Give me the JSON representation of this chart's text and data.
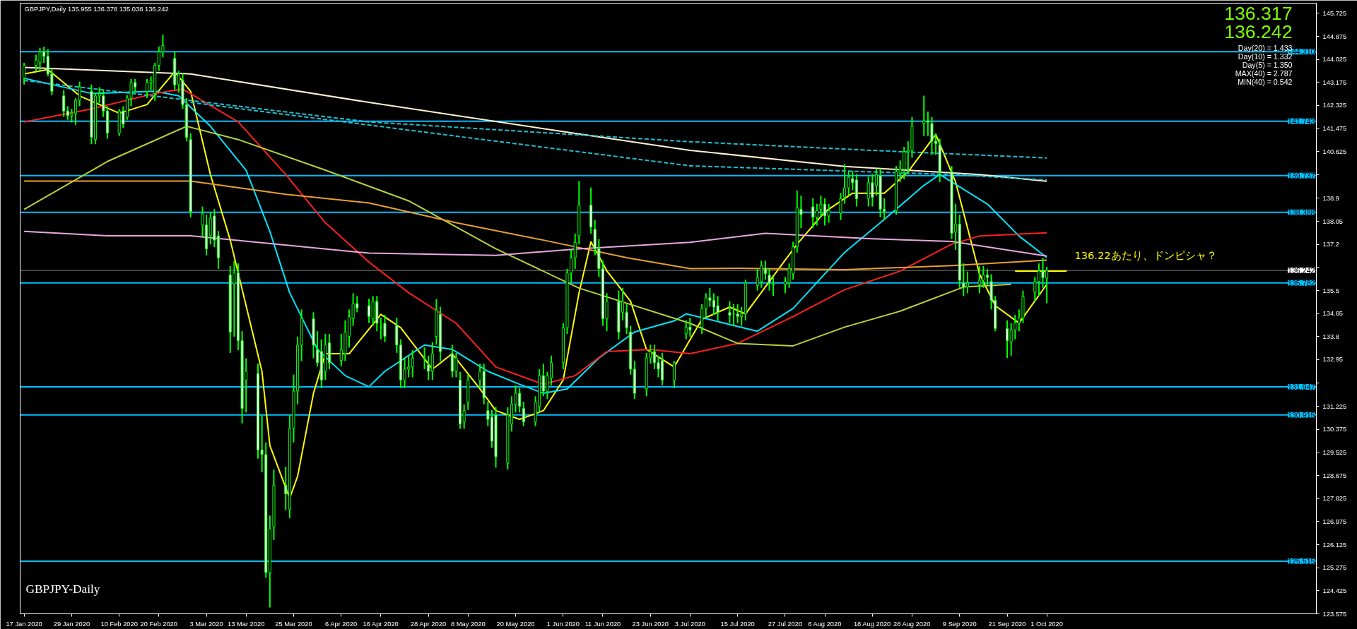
{
  "chart_data": {
    "type": "candlestick",
    "title": "GBPJPY,Daily  135.955 136.378 135.038 136.242",
    "x": [
      "2020-01-17",
      "2020-01-20",
      "2020-01-21",
      "2020-01-22",
      "2020-01-23",
      "2020-01-24",
      "2020-01-27",
      "2020-01-28",
      "2020-01-29",
      "2020-01-30",
      "2020-01-31",
      "2020-02-03",
      "2020-02-04",
      "2020-02-05",
      "2020-02-06",
      "2020-02-07",
      "2020-02-10",
      "2020-02-11",
      "2020-02-12",
      "2020-02-13",
      "2020-02-14",
      "2020-02-17",
      "2020-02-18",
      "2020-02-19",
      "2020-02-20",
      "2020-02-21",
      "2020-02-24",
      "2020-02-25",
      "2020-02-26",
      "2020-02-27",
      "2020-02-28",
      "2020-03-02",
      "2020-03-03",
      "2020-03-04",
      "2020-03-05",
      "2020-03-06",
      "2020-03-09",
      "2020-03-10",
      "2020-03-11",
      "2020-03-12",
      "2020-03-13",
      "2020-03-16",
      "2020-03-17",
      "2020-03-18",
      "2020-03-19",
      "2020-03-20",
      "2020-03-23",
      "2020-03-24",
      "2020-03-25",
      "2020-03-26",
      "2020-03-27",
      "2020-03-30",
      "2020-03-31",
      "2020-04-01",
      "2020-04-02",
      "2020-04-03",
      "2020-04-06",
      "2020-04-07",
      "2020-04-08",
      "2020-04-09",
      "2020-04-10",
      "2020-04-13",
      "2020-04-14",
      "2020-04-15",
      "2020-04-16",
      "2020-04-17",
      "2020-04-20",
      "2020-04-21",
      "2020-04-22",
      "2020-04-23",
      "2020-04-24",
      "2020-04-27",
      "2020-04-28",
      "2020-04-29",
      "2020-04-30",
      "2020-05-01",
      "2020-05-04",
      "2020-05-05",
      "2020-05-06",
      "2020-05-07",
      "2020-05-08",
      "2020-05-11",
      "2020-05-12",
      "2020-05-13",
      "2020-05-14",
      "2020-05-15",
      "2020-05-18",
      "2020-05-19",
      "2020-05-20",
      "2020-05-21",
      "2020-05-22",
      "2020-05-25",
      "2020-05-26",
      "2020-05-27",
      "2020-05-28",
      "2020-05-29",
      "2020-06-01",
      "2020-06-02",
      "2020-06-03",
      "2020-06-04",
      "2020-06-05",
      "2020-06-08",
      "2020-06-09",
      "2020-06-10",
      "2020-06-11",
      "2020-06-12",
      "2020-06-15",
      "2020-06-16",
      "2020-06-17",
      "2020-06-18",
      "2020-06-19",
      "2020-06-22",
      "2020-06-23",
      "2020-06-24",
      "2020-06-25",
      "2020-06-26",
      "2020-06-29",
      "2020-07-02",
      "2020-07-03",
      "2020-07-06",
      "2020-07-07",
      "2020-07-08",
      "2020-07-09",
      "2020-07-10",
      "2020-07-13",
      "2020-07-14",
      "2020-07-15",
      "2020-07-16",
      "2020-07-17",
      "2020-07-20",
      "2020-07-21",
      "2020-07-22",
      "2020-07-23",
      "2020-07-24",
      "2020-07-27",
      "2020-07-28",
      "2020-07-29",
      "2020-07-30",
      "2020-07-31",
      "2020-08-03",
      "2020-08-04",
      "2020-08-05",
      "2020-08-06",
      "2020-08-07",
      "2020-08-10",
      "2020-08-11",
      "2020-08-12",
      "2020-08-13",
      "2020-08-14",
      "2020-08-17",
      "2020-08-18",
      "2020-08-19",
      "2020-08-20",
      "2020-08-21",
      "2020-08-24",
      "2020-08-25",
      "2020-08-26",
      "2020-08-27",
      "2020-08-28",
      "2020-08-31",
      "2020-09-01",
      "2020-09-02",
      "2020-09-03",
      "2020-09-04",
      "2020-09-07",
      "2020-09-08",
      "2020-09-09",
      "2020-09-10",
      "2020-09-11",
      "2020-09-14",
      "2020-09-15",
      "2020-09-16",
      "2020-09-17",
      "2020-09-18",
      "2020-09-21",
      "2020-09-22",
      "2020-09-23",
      "2020-09-24",
      "2020-09-25",
      "2020-09-28",
      "2020-09-29",
      "2020-09-30",
      "2020-10-01"
    ],
    "ohlc": [
      [
        143.33,
        143.9,
        143.1,
        143.81
      ],
      [
        143.81,
        144.2,
        143.6,
        144.0
      ],
      [
        143.9,
        144.45,
        143.6,
        144.3
      ],
      [
        144.3,
        144.5,
        143.9,
        144.14
      ],
      [
        144.14,
        144.4,
        143.4,
        143.49
      ],
      [
        143.49,
        143.7,
        142.7,
        142.85
      ],
      [
        142.68,
        142.9,
        141.9,
        142.12
      ],
      [
        142.12,
        142.3,
        141.8,
        141.95
      ],
      [
        141.95,
        142.2,
        141.7,
        142.04
      ],
      [
        142.04,
        142.6,
        141.6,
        142.52
      ],
      [
        142.52,
        143.2,
        142.3,
        143.01
      ],
      [
        142.85,
        143.1,
        140.9,
        141.15
      ],
      [
        141.07,
        142.8,
        140.9,
        142.68
      ],
      [
        142.68,
        143.0,
        142.4,
        142.75
      ],
      [
        142.68,
        142.9,
        141.9,
        142.12
      ],
      [
        142.12,
        142.3,
        141.1,
        141.31
      ],
      [
        141.31,
        142.2,
        141.2,
        142.12
      ],
      [
        142.12,
        142.3,
        141.5,
        141.64
      ],
      [
        141.9,
        142.7,
        141.8,
        142.6
      ],
      [
        142.6,
        143.3,
        142.3,
        143.17
      ],
      [
        143.17,
        143.3,
        142.8,
        143.01
      ],
      [
        142.85,
        143.3,
        142.6,
        143.17
      ],
      [
        143.17,
        143.4,
        142.9,
        143.25
      ],
      [
        142.77,
        143.9,
        142.5,
        143.81
      ],
      [
        143.81,
        144.5,
        143.6,
        144.3
      ],
      [
        144.3,
        144.94,
        144.1,
        144.54
      ],
      [
        144.06,
        144.3,
        142.9,
        143.09
      ],
      [
        143.09,
        143.6,
        142.8,
        143.49
      ],
      [
        143.25,
        143.5,
        142.2,
        142.36
      ],
      [
        142.36,
        142.6,
        141.0,
        141.15
      ],
      [
        141.07,
        141.3,
        138.2,
        138.41
      ],
      [
        137.92,
        138.6,
        137.5,
        138.33
      ],
      [
        137.92,
        138.3,
        136.8,
        137.04
      ],
      [
        137.52,
        138.4,
        137.2,
        138.17
      ],
      [
        138.25,
        138.5,
        137.1,
        137.36
      ],
      [
        137.52,
        137.7,
        136.3,
        136.71
      ],
      [
        136.07,
        136.4,
        133.2,
        133.97
      ],
      [
        135.75,
        136.6,
        133.8,
        136.15
      ],
      [
        136.15,
        136.5,
        133.3,
        133.65
      ],
      [
        133.65,
        134.0,
        130.6,
        131.15
      ],
      [
        132.2,
        133.0,
        131.0,
        132.52
      ],
      [
        132.44,
        132.8,
        129.3,
        129.62
      ],
      [
        129.62,
        130.9,
        128.8,
        129.45
      ],
      [
        129.45,
        129.9,
        124.9,
        125.1
      ],
      [
        125.1,
        127.2,
        123.81,
        126.71
      ],
      [
        126.79,
        128.9,
        126.3,
        128.32
      ],
      [
        128.32,
        129.0,
        127.4,
        128.0
      ],
      [
        127.44,
        130.9,
        127.1,
        130.42
      ],
      [
        130.42,
        132.4,
        129.9,
        131.79
      ],
      [
        131.79,
        133.8,
        131.3,
        133.49
      ],
      [
        133.49,
        134.8,
        132.9,
        134.46
      ],
      [
        134.46,
        134.7,
        133.0,
        133.49
      ],
      [
        133.33,
        134.0,
        132.7,
        132.84
      ],
      [
        133.25,
        133.7,
        131.9,
        132.2
      ],
      [
        132.52,
        133.9,
        132.2,
        133.49
      ],
      [
        133.57,
        133.9,
        132.6,
        132.84
      ],
      [
        132.92,
        133.9,
        132.7,
        133.33
      ],
      [
        133.17,
        134.4,
        132.9,
        133.97
      ],
      [
        133.81,
        134.8,
        133.4,
        134.54
      ],
      [
        134.46,
        135.4,
        134.2,
        135.02
      ],
      [
        135.02,
        135.3,
        134.7,
        134.86
      ],
      [
        134.94,
        135.2,
        134.3,
        134.54
      ],
      [
        134.46,
        135.3,
        134.2,
        135.1
      ],
      [
        135.1,
        135.3,
        134.0,
        134.29
      ],
      [
        134.13,
        134.5,
        133.7,
        134.13
      ],
      [
        134.29,
        134.6,
        133.6,
        133.81
      ],
      [
        134.21,
        134.5,
        133.2,
        133.49
      ],
      [
        133.49,
        133.7,
        131.9,
        132.2
      ],
      [
        132.2,
        133.0,
        131.9,
        132.6
      ],
      [
        132.6,
        133.1,
        132.3,
        132.68
      ],
      [
        132.68,
        133.3,
        132.3,
        133.01
      ],
      [
        133.01,
        133.4,
        132.6,
        133.01
      ],
      [
        132.76,
        133.1,
        132.2,
        132.52
      ],
      [
        132.52,
        133.6,
        132.2,
        133.17
      ],
      [
        133.81,
        135.18,
        133.5,
        134.78
      ],
      [
        134.62,
        134.9,
        132.9,
        133.25
      ],
      [
        133.17,
        133.5,
        132.3,
        132.52
      ],
      [
        132.52,
        133.2,
        132.3,
        133.01
      ],
      [
        132.2,
        132.5,
        130.4,
        130.58
      ],
      [
        130.66,
        131.3,
        130.4,
        131.07
      ],
      [
        131.39,
        132.4,
        131.1,
        132.2
      ],
      [
        132.2,
        132.8,
        131.9,
        132.52
      ],
      [
        132.52,
        132.8,
        131.3,
        131.55
      ],
      [
        131.07,
        131.4,
        130.5,
        130.75
      ],
      [
        130.83,
        131.1,
        129.7,
        129.94
      ],
      [
        130.91,
        131.2,
        128.97,
        129.37
      ],
      [
        129.13,
        131.2,
        128.9,
        130.91
      ],
      [
        130.58,
        131.6,
        130.3,
        131.31
      ],
      [
        131.31,
        132.0,
        131.0,
        131.71
      ],
      [
        131.71,
        131.9,
        131.0,
        131.23
      ],
      [
        131.15,
        131.4,
        130.5,
        130.66
      ],
      [
        130.66,
        131.6,
        130.5,
        131.39
      ],
      [
        131.23,
        132.6,
        131.0,
        132.36
      ],
      [
        132.36,
        132.8,
        131.6,
        131.79
      ],
      [
        131.79,
        132.5,
        131.5,
        132.36
      ],
      [
        132.28,
        133.1,
        132.0,
        132.84
      ],
      [
        132.84,
        134.3,
        132.6,
        134.13
      ],
      [
        134.13,
        136.3,
        133.9,
        136.15
      ],
      [
        136.15,
        137.0,
        135.8,
        136.71
      ],
      [
        136.71,
        137.6,
        136.3,
        137.28
      ],
      [
        137.52,
        139.54,
        137.2,
        138.65
      ],
      [
        138.65,
        139.3,
        137.6,
        137.84
      ],
      [
        137.76,
        138.1,
        136.8,
        137.04
      ],
      [
        137.04,
        137.4,
        136.0,
        136.31
      ],
      [
        136.31,
        136.6,
        134.2,
        134.46
      ],
      [
        134.46,
        135.4,
        134.0,
        135.1
      ],
      [
        135.1,
        135.5,
        133.7,
        133.97
      ],
      [
        134.7,
        135.6,
        134.4,
        135.1
      ],
      [
        134.7,
        135.0,
        133.9,
        134.13
      ],
      [
        133.97,
        134.2,
        132.4,
        132.6
      ],
      [
        132.6,
        132.9,
        131.5,
        131.71
      ],
      [
        131.87,
        133.2,
        131.6,
        133.01
      ],
      [
        133.01,
        133.5,
        132.8,
        133.25
      ],
      [
        133.25,
        133.5,
        132.6,
        132.84
      ],
      [
        132.84,
        133.1,
        132.3,
        132.6
      ],
      [
        132.92,
        133.2,
        132.0,
        132.2
      ],
      [
        132.2,
        132.9,
        131.9,
        132.84
      ],
      [
        133.9,
        134.4,
        133.7,
        134.15
      ],
      [
        134.15,
        134.5,
        133.8,
        134.05
      ],
      [
        134.15,
        135.0,
        133.9,
        134.84
      ],
      [
        134.84,
        135.4,
        134.5,
        135.23
      ],
      [
        135.23,
        135.6,
        134.9,
        135.14
      ],
      [
        135.14,
        135.4,
        134.6,
        134.89
      ],
      [
        134.94,
        135.3,
        134.4,
        134.69
      ],
      [
        134.69,
        135.1,
        134.3,
        134.59
      ],
      [
        134.64,
        135.0,
        134.2,
        134.64
      ],
      [
        134.64,
        135.0,
        134.3,
        134.54
      ],
      [
        134.54,
        134.9,
        134.2,
        134.64
      ],
      [
        134.64,
        135.9,
        134.4,
        135.78
      ],
      [
        135.68,
        136.3,
        135.5,
        135.98
      ],
      [
        135.83,
        136.6,
        135.6,
        136.42
      ],
      [
        136.32,
        136.6,
        135.9,
        136.12
      ],
      [
        136.07,
        136.3,
        135.5,
        135.78
      ],
      [
        135.73,
        136.0,
        135.3,
        135.73
      ],
      [
        135.73,
        136.0,
        135.4,
        135.83
      ],
      [
        135.78,
        136.5,
        135.6,
        136.32
      ],
      [
        136.12,
        137.3,
        135.9,
        137.11
      ],
      [
        137.11,
        139.19,
        136.9,
        138.55
      ],
      [
        138.5,
        139.0,
        137.8,
        138.3
      ],
      [
        138.59,
        138.9,
        137.8,
        138.2
      ],
      [
        138.2,
        138.7,
        137.9,
        138.45
      ],
      [
        138.5,
        139.0,
        138.2,
        138.69
      ],
      [
        138.69,
        138.9,
        137.9,
        138.25
      ],
      [
        138.25,
        138.7,
        138.0,
        138.45
      ],
      [
        138.35,
        139.1,
        138.1,
        138.89
      ],
      [
        138.94,
        140.17,
        138.7,
        139.29
      ],
      [
        139.29,
        139.9,
        139.0,
        139.68
      ],
      [
        139.63,
        139.9,
        139.2,
        139.48
      ],
      [
        139.58,
        139.8,
        138.6,
        138.89
      ],
      [
        138.89,
        139.7,
        138.6,
        139.48
      ],
      [
        139.48,
        139.8,
        138.6,
        138.94
      ],
      [
        139.38,
        140.0,
        139.0,
        139.78
      ],
      [
        139.73,
        140.0,
        138.2,
        138.5
      ],
      [
        138.5,
        138.9,
        138.1,
        138.42
      ],
      [
        138.45,
        140.1,
        138.3,
        139.88
      ],
      [
        139.83,
        140.3,
        139.5,
        139.98
      ],
      [
        139.98,
        140.8,
        139.6,
        140.62
      ],
      [
        140.62,
        141.0,
        139.8,
        140.67
      ],
      [
        140.67,
        141.9,
        140.4,
        141.56
      ],
      [
        141.66,
        142.69,
        141.2,
        141.76
      ],
      [
        141.76,
        142.1,
        141.2,
        141.71
      ],
      [
        141.66,
        141.9,
        140.5,
        141.01
      ],
      [
        141.01,
        141.3,
        140.5,
        140.92
      ],
      [
        140.87,
        141.1,
        139.5,
        139.88
      ],
      [
        139.88,
        140.1,
        137.4,
        137.61
      ],
      [
        137.66,
        138.7,
        137.0,
        137.95
      ],
      [
        137.95,
        138.3,
        135.6,
        135.88
      ],
      [
        135.78,
        136.5,
        135.3,
        135.63
      ],
      [
        135.63,
        136.2,
        135.4,
        135.78
      ],
      [
        135.73,
        136.4,
        135.4,
        135.88
      ],
      [
        135.88,
        136.4,
        135.6,
        136.07
      ],
      [
        136.07,
        136.3,
        135.7,
        135.98
      ],
      [
        135.83,
        136.1,
        134.8,
        135.14
      ],
      [
        135.14,
        135.3,
        134.0,
        134.1
      ],
      [
        134.1,
        134.4,
        133.01,
        133.65
      ],
      [
        133.6,
        134.3,
        133.1,
        134.05
      ],
      [
        134.05,
        134.6,
        133.7,
        134.3
      ],
      [
        134.3,
        134.8,
        134.0,
        134.49
      ],
      [
        134.49,
        135.5,
        134.3,
        135.28
      ],
      [
        135.43,
        136.0,
        135.1,
        135.83
      ],
      [
        135.83,
        136.5,
        135.3,
        136.22
      ],
      [
        136.22,
        136.7,
        135.6,
        135.98
      ],
      [
        135.955,
        136.378,
        135.038,
        136.242
      ]
    ],
    "series": [
      {
        "type": "line",
        "color": "#ffff00",
        "x": [
          "2020-01-17",
          "2020-01-23",
          "2020-01-31",
          "2020-02-10",
          "2020-02-17",
          "2020-02-24",
          "2020-02-28",
          "2020-03-04",
          "2020-03-09",
          "2020-03-17",
          "2020-03-19",
          "2020-03-24",
          "2020-03-26",
          "2020-03-30",
          "2020-04-02",
          "2020-04-08",
          "2020-04-16",
          "2020-04-21",
          "2020-04-29",
          "2020-05-04",
          "2020-05-11",
          "2020-05-15",
          "2020-05-21",
          "2020-05-27",
          "2020-06-01",
          "2020-06-05",
          "2020-06-08",
          "2020-06-12",
          "2020-06-18",
          "2020-06-22",
          "2020-06-29",
          "2020-07-06",
          "2020-07-13",
          "2020-07-17",
          "2020-07-24",
          "2020-07-30",
          "2020-08-06",
          "2020-08-13",
          "2020-08-21",
          "2020-08-27",
          "2020-09-03",
          "2020-09-08",
          "2020-09-14",
          "2020-09-18",
          "2020-09-24",
          "2020-10-01"
        ],
        "values": [
          143.49,
          143.65,
          142.68,
          142.04,
          142.36,
          143.57,
          142.85,
          139.78,
          137.36,
          132.52,
          129.78,
          127.84,
          128.65,
          131.71,
          133.17,
          133.17,
          134.62,
          134.13,
          132.6,
          133.17,
          131.87,
          131.07,
          130.75,
          131.07,
          132.2,
          135.42,
          137.3,
          136.23,
          135.1,
          133.33,
          132.68,
          134.44,
          134.89,
          134.64,
          136.03,
          137.21,
          138.4,
          139.09,
          139.09,
          139.88,
          141.26,
          139.5,
          136.12,
          134.94,
          134.3,
          135.73
        ]
      },
      {
        "type": "line",
        "color": "#00e5ff",
        "x": [
          "2020-01-17",
          "2020-02-03",
          "2020-02-19",
          "2020-02-25",
          "2020-03-04",
          "2020-03-13",
          "2020-03-19",
          "2020-03-24",
          "2020-03-31",
          "2020-04-07",
          "2020-04-13",
          "2020-04-17",
          "2020-04-27",
          "2020-05-04",
          "2020-05-13",
          "2020-05-21",
          "2020-05-27",
          "2020-06-02",
          "2020-06-10",
          "2020-06-19",
          "2020-06-29",
          "2020-07-02",
          "2020-07-20",
          "2020-07-29",
          "2020-08-11",
          "2020-08-20",
          "2020-08-31",
          "2020-09-04",
          "2020-09-16",
          "2020-09-24",
          "2020-10-01"
        ],
        "values": [
          143.33,
          142.77,
          142.85,
          142.68,
          141.56,
          139.94,
          137.68,
          135.42,
          133.33,
          132.36,
          131.95,
          132.52,
          133.49,
          133.33,
          132.52,
          132.04,
          131.71,
          131.87,
          133.01,
          133.97,
          134.38,
          134.64,
          134.0,
          134.84,
          136.91,
          138.0,
          139.38,
          139.78,
          138.69,
          137.51,
          136.72
        ]
      },
      {
        "type": "line",
        "color": "#ff2020",
        "x": [
          "2020-01-17",
          "2020-02-03",
          "2020-02-19",
          "2020-02-26",
          "2020-03-11",
          "2020-03-23",
          "2020-04-02",
          "2020-04-13",
          "2020-04-23",
          "2020-05-05",
          "2020-05-15",
          "2020-05-27",
          "2020-06-04",
          "2020-06-12",
          "2020-06-23",
          "2020-07-03",
          "2020-07-15",
          "2020-07-29",
          "2020-08-11",
          "2020-08-25",
          "2020-09-07",
          "2020-09-14",
          "2020-10-01"
        ],
        "values": [
          141.72,
          142.2,
          142.77,
          142.93,
          141.72,
          139.78,
          138.0,
          136.55,
          135.42,
          134.29,
          132.68,
          132.04,
          132.36,
          133.25,
          133.33,
          133.17,
          133.55,
          134.54,
          135.53,
          136.22,
          137.21,
          137.51,
          137.63
        ]
      },
      {
        "type": "line",
        "color": "#b5d43a",
        "x": [
          "2020-01-17",
          "2020-02-07",
          "2020-02-27",
          "2020-03-11",
          "2020-04-02",
          "2020-04-23",
          "2020-05-15",
          "2020-06-05",
          "2020-07-03",
          "2020-07-15",
          "2020-07-29",
          "2020-08-11",
          "2020-08-25",
          "2020-09-10",
          "2020-09-22"
        ],
        "values": [
          138.49,
          140.26,
          141.56,
          141.07,
          139.94,
          138.81,
          137.04,
          135.59,
          134.29,
          133.55,
          133.46,
          134.15,
          134.74,
          135.63,
          135.73
        ]
      },
      {
        "type": "line",
        "color": "#e6a030",
        "x": [
          "2020-01-17",
          "2020-02-28",
          "2020-03-23",
          "2020-04-13",
          "2020-05-05",
          "2020-05-27",
          "2020-06-17",
          "2020-07-03",
          "2020-07-15",
          "2020-08-11",
          "2020-09-07",
          "2020-10-01"
        ],
        "values": [
          139.54,
          139.54,
          139.05,
          138.73,
          138.0,
          137.36,
          136.71,
          136.31,
          136.32,
          136.27,
          136.42,
          136.62
        ]
      },
      {
        "type": "line",
        "color": "#e8a8e0",
        "x": [
          "2020-01-17",
          "2020-02-07",
          "2020-02-28",
          "2020-04-13",
          "2020-05-15",
          "2020-06-05",
          "2020-07-03",
          "2020-07-22",
          "2020-08-18",
          "2020-09-07",
          "2020-10-01"
        ],
        "values": [
          137.68,
          137.52,
          137.52,
          136.88,
          136.8,
          137.04,
          137.28,
          137.61,
          137.41,
          137.31,
          136.77
        ]
      },
      {
        "type": "line",
        "color": "#fff0d0",
        "x": [
          "2020-01-17",
          "2020-02-28",
          "2020-04-13",
          "2020-05-27",
          "2020-07-03",
          "2020-08-11",
          "2020-09-14",
          "2020-10-01"
        ],
        "values": [
          143.73,
          143.49,
          142.44,
          141.47,
          140.67,
          140.08,
          139.78,
          139.53
        ]
      },
      {
        "type": "line",
        "color": "#20c0d0",
        "line_style": "dashed",
        "x": [
          "2020-01-17",
          "2020-04-13",
          "2020-07-03",
          "2020-08-18",
          "2020-10-01"
        ],
        "values": [
          143.25,
          141.72,
          140.99,
          140.67,
          140.39
        ]
      },
      {
        "type": "line",
        "color": "#20c0d0",
        "line_style": "dashed",
        "x": [
          "2020-02-28",
          "2020-07-03",
          "2020-09-07",
          "2020-10-01"
        ],
        "values": [
          142.44,
          140.1,
          139.78,
          139.58
        ]
      },
      {
        "type": "line",
        "color": "#ffff00",
        "x": [
          "2020-09-23",
          "2020-10-06"
        ],
        "values": [
          136.22,
          136.22
        ]
      }
    ],
    "ref_lines": [
      {
        "axis": "y",
        "value": 144.31,
        "label": "144.310",
        "color": "#00bfff"
      },
      {
        "axis": "y",
        "value": 141.743,
        "label": "141.743",
        "color": "#00bfff"
      },
      {
        "axis": "y",
        "value": 139.737,
        "label": "139.737",
        "color": "#00bfff"
      },
      {
        "axis": "y",
        "value": 138.388,
        "label": "138.388",
        "color": "#00bfff"
      },
      {
        "axis": "y",
        "value": 135.782,
        "label": "135.782",
        "color": "#00bfff"
      },
      {
        "axis": "y",
        "value": 131.947,
        "label": "131.947",
        "color": "#00bfff"
      },
      {
        "axis": "y",
        "value": 130.915,
        "label": "130.915",
        "color": "#00bfff"
      },
      {
        "axis": "y",
        "value": 125.515,
        "label": "125.515",
        "color": "#00bfff"
      },
      {
        "axis": "y",
        "value": 136.242,
        "label": "136.242",
        "color": "#808080"
      }
    ],
    "annotations": [
      "136.317",
      "136.242",
      "Day(20) = 1.433",
      "Day(10) = 1.332",
      "Day(5) = 1.350",
      "MAX(40) = 2.787",
      "MIN(40) = 0.542",
      "GBPJPY-Daily",
      {
        "text": "136.22あたり、ドンピシャ？",
        "x": "2020-10-08",
        "y": 136.22
      }
    ],
    "xlim": [
      "2020-01-16",
      "2020-12-08"
    ],
    "ylim": [
      123.575,
      146.1
    ],
    "xticks": [
      {
        "value": "2020-01-17",
        "label": "17 Jan 2020"
      },
      {
        "value": "2020-01-29",
        "label": "29 Jan 2020"
      },
      {
        "value": "2020-02-10",
        "label": "10 Feb 2020"
      },
      {
        "value": "2020-02-20",
        "label": "20 Feb 2020"
      },
      {
        "value": "2020-03-03",
        "label": "3 Mar 2020"
      },
      {
        "value": "2020-03-13",
        "label": "13 Mar 2020"
      },
      {
        "value": "2020-03-25",
        "label": "25 Mar 2020"
      },
      {
        "value": "2020-04-06",
        "label": "6 Apr 2020"
      },
      {
        "value": "2020-04-16",
        "label": "16 Apr 2020"
      },
      {
        "value": "2020-04-28",
        "label": "28 Apr 2020"
      },
      {
        "value": "2020-05-08",
        "label": "8 May 2020"
      },
      {
        "value": "2020-05-20",
        "label": "20 May 2020"
      },
      {
        "value": "2020-06-01",
        "label": "1 Jun 2020"
      },
      {
        "value": "2020-06-11",
        "label": "11 Jun 2020"
      },
      {
        "value": "2020-06-23",
        "label": "23 Jun 2020"
      },
      {
        "value": "2020-07-03",
        "label": "3 Jul 2020"
      },
      {
        "value": "2020-07-15",
        "label": "15 Jul 2020"
      },
      {
        "value": "2020-07-27",
        "label": "27 Jul 2020"
      },
      {
        "value": "2020-08-06",
        "label": "6 Aug 2020"
      },
      {
        "value": "2020-08-18",
        "label": "18 Aug 2020"
      },
      {
        "value": "2020-08-28",
        "label": "28 Aug 2020"
      },
      {
        "value": "2020-09-09",
        "label": "9 Sep 2020"
      },
      {
        "value": "2020-09-21",
        "label": "21 Sep 2020"
      },
      {
        "value": "2020-10-01",
        "label": "1 Oct 2020"
      }
    ],
    "yticks": [
      145.725,
      144.875,
      144.025,
      143.175,
      142.325,
      141.475,
      140.625,
      {
        "value": 139.775,
        "label": null
      },
      138.9,
      138.05,
      137.2,
      {
        "value": 136.35,
        "label": null
      },
      135.5,
      134.65,
      133.8,
      132.95,
      {
        "value": 132.1,
        "label": null
      },
      131.225,
      130.375,
      129.525,
      128.675,
      127.825,
      126.975,
      126.125,
      125.275,
      124.425,
      123.575
    ]
  }
}
